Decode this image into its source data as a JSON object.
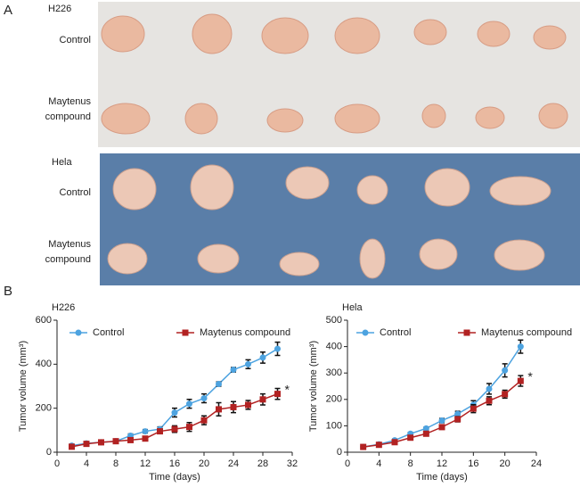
{
  "panel_a": {
    "label": "A",
    "groups": [
      {
        "name": "H226",
        "rows": [
          [
            "Control"
          ],
          [
            "Maytenus",
            "compound"
          ]
        ]
      },
      {
        "name": "Hela",
        "rows": [
          [
            "Control"
          ],
          [
            "Maytenus",
            "compound"
          ]
        ]
      }
    ]
  },
  "panel_b": {
    "label": "B"
  },
  "chart_data": [
    {
      "type": "line",
      "title": "H226",
      "x_label": "Time (days)",
      "y_label": "Tumor volume (mm³)",
      "x": [
        2,
        4,
        6,
        8,
        10,
        12,
        14,
        16,
        18,
        20,
        22,
        24,
        26,
        28,
        30
      ],
      "series": [
        {
          "name": "Control",
          "color": "#4da3e0",
          "marker": "circle",
          "values": [
            30,
            40,
            45,
            50,
            75,
            95,
            105,
            180,
            220,
            245,
            310,
            375,
            400,
            430,
            470
          ],
          "errors": [
            5,
            5,
            5,
            5,
            8,
            8,
            10,
            20,
            20,
            20,
            10,
            10,
            20,
            25,
            30
          ]
        },
        {
          "name": "Maytenus compound",
          "color": "#b22222",
          "marker": "square",
          "values": [
            25,
            38,
            45,
            50,
            55,
            62,
            95,
            105,
            115,
            145,
            195,
            205,
            215,
            240,
            265
          ],
          "errors": [
            5,
            5,
            5,
            5,
            8,
            8,
            10,
            15,
            20,
            20,
            30,
            25,
            20,
            25,
            25
          ]
        }
      ],
      "annotation": "*",
      "xlim": [
        0,
        32
      ],
      "xticks": [
        0,
        4,
        8,
        12,
        16,
        20,
        24,
        28,
        32
      ],
      "ylim": [
        0,
        600
      ],
      "yticks": [
        0,
        200,
        400,
        600
      ],
      "legend": "top"
    },
    {
      "type": "line",
      "title": "Hela",
      "x_label": "Time (days)",
      "y_label": "Tumor volume (mm³)",
      "x": [
        2,
        4,
        6,
        8,
        10,
        12,
        14,
        16,
        18,
        20,
        22
      ],
      "series": [
        {
          "name": "Control",
          "color": "#4da3e0",
          "marker": "circle",
          "values": [
            20,
            30,
            45,
            70,
            90,
            120,
            145,
            180,
            240,
            310,
            400
          ],
          "errors": [
            5,
            5,
            5,
            5,
            5,
            8,
            10,
            15,
            20,
            25,
            25
          ]
        },
        {
          "name": "Maytenus compound",
          "color": "#b22222",
          "marker": "square",
          "values": [
            20,
            28,
            38,
            55,
            70,
            95,
            125,
            165,
            195,
            220,
            270
          ],
          "errors": [
            5,
            5,
            5,
            5,
            5,
            8,
            10,
            15,
            15,
            15,
            20
          ]
        }
      ],
      "annotation": "*",
      "xlim": [
        0,
        24
      ],
      "xticks": [
        0,
        4,
        8,
        12,
        16,
        20,
        24
      ],
      "ylim": [
        0,
        500
      ],
      "yticks": [
        0,
        100,
        200,
        300,
        400,
        500
      ],
      "legend": "top"
    }
  ]
}
